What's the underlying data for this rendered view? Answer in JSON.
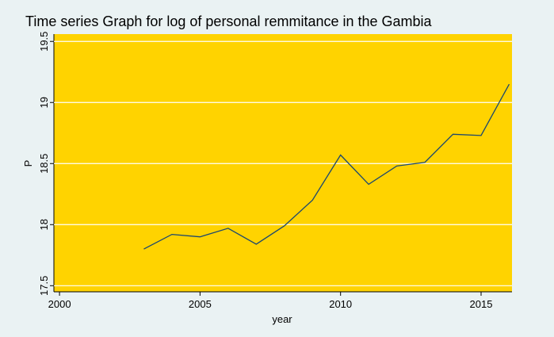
{
  "chart_data": {
    "type": "line",
    "title": "Time series Graph for log of personal remmitance in the Gambia",
    "x_label": "year",
    "y_label": "P",
    "x": [
      2003,
      2004,
      2005,
      2006,
      2007,
      2008,
      2009,
      2010,
      2011,
      2012,
      2013,
      2014,
      2015,
      2016
    ],
    "series": [
      {
        "color": "#1a476f",
        "values": [
          17.8,
          17.92,
          17.9,
          17.97,
          17.84,
          17.99,
          18.2,
          18.57,
          18.33,
          18.48,
          18.51,
          18.74,
          18.73,
          19.15
        ]
      }
    ],
    "xlim": [
      1999.8,
      2016.1
    ],
    "xticks": [
      2000,
      2005,
      2010,
      2015
    ],
    "ylim": [
      17.45,
      19.56
    ],
    "yticks": [
      17.5,
      18,
      18.5,
      19,
      19.5
    ],
    "grid": true,
    "plot_color": "#ffd300"
  }
}
